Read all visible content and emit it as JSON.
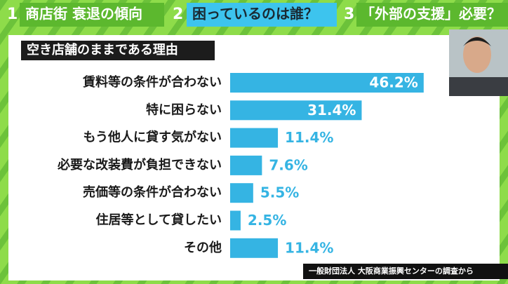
{
  "header": {
    "tabs": [
      {
        "number": "1",
        "label": "商店街 衰退の傾向"
      },
      {
        "number": "2",
        "label": "困っているのは誰？"
      },
      {
        "number": "3",
        "label": "「外部の支援」必要？"
      }
    ]
  },
  "chart_data": {
    "type": "bar",
    "orientation": "horizontal",
    "title": "空き店舗のままである理由",
    "categories": [
      "賃料等の条件が合わない",
      "特に困らない",
      "もう他人に貸す気がない",
      "必要な改装費が負担できない",
      "売価等の条件が合わない",
      "住居等として貸したい",
      "その他"
    ],
    "values": [
      46.2,
      31.4,
      11.4,
      7.6,
      5.5,
      2.5,
      11.4
    ],
    "value_labels": [
      "46.2%",
      "31.4%",
      "11.4%",
      "7.6%",
      "5.5%",
      "2.5%",
      "11.4%"
    ],
    "color": "#35b4e3"
  },
  "source": "一般財団法人 大阪商業振興センターの調査から"
}
